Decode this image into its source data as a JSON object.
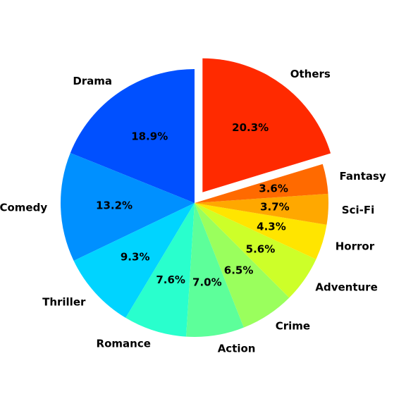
{
  "chart_data": {
    "type": "pie",
    "title": "",
    "start_angle_deg": 90,
    "direction": "counterclockwise",
    "slices": [
      {
        "label": "Drama",
        "value": 18.9,
        "pct_label": "18.9%",
        "color": "#0050ff",
        "explode": false
      },
      {
        "label": "Comedy",
        "value": 13.2,
        "pct_label": "13.2%",
        "color": "#0090ff",
        "explode": false
      },
      {
        "label": "Thriller",
        "value": 9.3,
        "pct_label": "9.3%",
        "color": "#00d4ff",
        "explode": false
      },
      {
        "label": "Romance",
        "value": 7.6,
        "pct_label": "7.6%",
        "color": "#29ffcd",
        "explode": false
      },
      {
        "label": "Action",
        "value": 7.0,
        "pct_label": "7.0%",
        "color": "#5dff9a",
        "explode": false
      },
      {
        "label": "Crime",
        "value": 6.5,
        "pct_label": "6.5%",
        "color": "#9aff5d",
        "explode": false
      },
      {
        "label": "Adventure",
        "value": 5.6,
        "pct_label": "5.6%",
        "color": "#cdff29",
        "explode": false
      },
      {
        "label": "Horror",
        "value": 4.3,
        "pct_label": "4.3%",
        "color": "#ffe500",
        "explode": false
      },
      {
        "label": "Sci-Fi",
        "value": 3.7,
        "pct_label": "3.7%",
        "color": "#ffa800",
        "explode": false
      },
      {
        "label": "Fantasy",
        "value": 3.6,
        "pct_label": "3.6%",
        "color": "#ff6a00",
        "explode": false
      },
      {
        "label": "Others",
        "value": 20.3,
        "pct_label": "20.3%",
        "color": "#ff2a00",
        "explode": true
      }
    ]
  }
}
